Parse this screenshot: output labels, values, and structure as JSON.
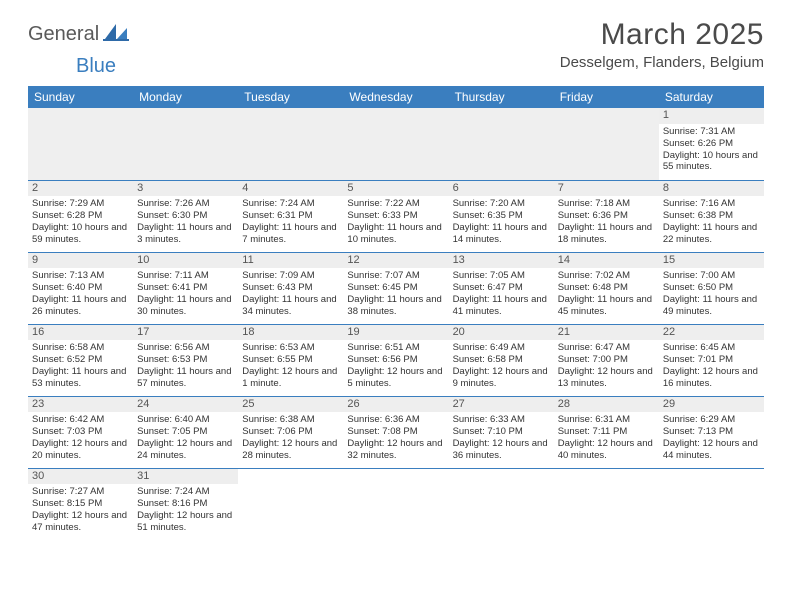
{
  "brand": {
    "part1": "General",
    "part2": "Blue"
  },
  "title": "March 2025",
  "location": "Desselgem, Flanders, Belgium",
  "colors": {
    "header_bg": "#3a7ebf",
    "header_text": "#ffffff",
    "daynum_bg": "#eeeeee",
    "border": "#3a7ebf",
    "text": "#333333",
    "logo_gray": "#5a5a5a",
    "logo_blue": "#3a7ebf"
  },
  "weekdays": [
    "Sunday",
    "Monday",
    "Tuesday",
    "Wednesday",
    "Thursday",
    "Friday",
    "Saturday"
  ],
  "weeks": [
    [
      null,
      null,
      null,
      null,
      null,
      null,
      {
        "d": "1",
        "sr": "7:31 AM",
        "ss": "6:26 PM",
        "dl": "10 hours and 55 minutes."
      }
    ],
    [
      {
        "d": "2",
        "sr": "7:29 AM",
        "ss": "6:28 PM",
        "dl": "10 hours and 59 minutes."
      },
      {
        "d": "3",
        "sr": "7:26 AM",
        "ss": "6:30 PM",
        "dl": "11 hours and 3 minutes."
      },
      {
        "d": "4",
        "sr": "7:24 AM",
        "ss": "6:31 PM",
        "dl": "11 hours and 7 minutes."
      },
      {
        "d": "5",
        "sr": "7:22 AM",
        "ss": "6:33 PM",
        "dl": "11 hours and 10 minutes."
      },
      {
        "d": "6",
        "sr": "7:20 AM",
        "ss": "6:35 PM",
        "dl": "11 hours and 14 minutes."
      },
      {
        "d": "7",
        "sr": "7:18 AM",
        "ss": "6:36 PM",
        "dl": "11 hours and 18 minutes."
      },
      {
        "d": "8",
        "sr": "7:16 AM",
        "ss": "6:38 PM",
        "dl": "11 hours and 22 minutes."
      }
    ],
    [
      {
        "d": "9",
        "sr": "7:13 AM",
        "ss": "6:40 PM",
        "dl": "11 hours and 26 minutes."
      },
      {
        "d": "10",
        "sr": "7:11 AM",
        "ss": "6:41 PM",
        "dl": "11 hours and 30 minutes."
      },
      {
        "d": "11",
        "sr": "7:09 AM",
        "ss": "6:43 PM",
        "dl": "11 hours and 34 minutes."
      },
      {
        "d": "12",
        "sr": "7:07 AM",
        "ss": "6:45 PM",
        "dl": "11 hours and 38 minutes."
      },
      {
        "d": "13",
        "sr": "7:05 AM",
        "ss": "6:47 PM",
        "dl": "11 hours and 41 minutes."
      },
      {
        "d": "14",
        "sr": "7:02 AM",
        "ss": "6:48 PM",
        "dl": "11 hours and 45 minutes."
      },
      {
        "d": "15",
        "sr": "7:00 AM",
        "ss": "6:50 PM",
        "dl": "11 hours and 49 minutes."
      }
    ],
    [
      {
        "d": "16",
        "sr": "6:58 AM",
        "ss": "6:52 PM",
        "dl": "11 hours and 53 minutes."
      },
      {
        "d": "17",
        "sr": "6:56 AM",
        "ss": "6:53 PM",
        "dl": "11 hours and 57 minutes."
      },
      {
        "d": "18",
        "sr": "6:53 AM",
        "ss": "6:55 PM",
        "dl": "12 hours and 1 minute."
      },
      {
        "d": "19",
        "sr": "6:51 AM",
        "ss": "6:56 PM",
        "dl": "12 hours and 5 minutes."
      },
      {
        "d": "20",
        "sr": "6:49 AM",
        "ss": "6:58 PM",
        "dl": "12 hours and 9 minutes."
      },
      {
        "d": "21",
        "sr": "6:47 AM",
        "ss": "7:00 PM",
        "dl": "12 hours and 13 minutes."
      },
      {
        "d": "22",
        "sr": "6:45 AM",
        "ss": "7:01 PM",
        "dl": "12 hours and 16 minutes."
      }
    ],
    [
      {
        "d": "23",
        "sr": "6:42 AM",
        "ss": "7:03 PM",
        "dl": "12 hours and 20 minutes."
      },
      {
        "d": "24",
        "sr": "6:40 AM",
        "ss": "7:05 PM",
        "dl": "12 hours and 24 minutes."
      },
      {
        "d": "25",
        "sr": "6:38 AM",
        "ss": "7:06 PM",
        "dl": "12 hours and 28 minutes."
      },
      {
        "d": "26",
        "sr": "6:36 AM",
        "ss": "7:08 PM",
        "dl": "12 hours and 32 minutes."
      },
      {
        "d": "27",
        "sr": "6:33 AM",
        "ss": "7:10 PM",
        "dl": "12 hours and 36 minutes."
      },
      {
        "d": "28",
        "sr": "6:31 AM",
        "ss": "7:11 PM",
        "dl": "12 hours and 40 minutes."
      },
      {
        "d": "29",
        "sr": "6:29 AM",
        "ss": "7:13 PM",
        "dl": "12 hours and 44 minutes."
      }
    ],
    [
      {
        "d": "30",
        "sr": "7:27 AM",
        "ss": "8:15 PM",
        "dl": "12 hours and 47 minutes."
      },
      {
        "d": "31",
        "sr": "7:24 AM",
        "ss": "8:16 PM",
        "dl": "12 hours and 51 minutes."
      },
      null,
      null,
      null,
      null,
      null
    ]
  ],
  "labels": {
    "sunrise": "Sunrise: ",
    "sunset": "Sunset: ",
    "daylight": "Daylight: "
  }
}
